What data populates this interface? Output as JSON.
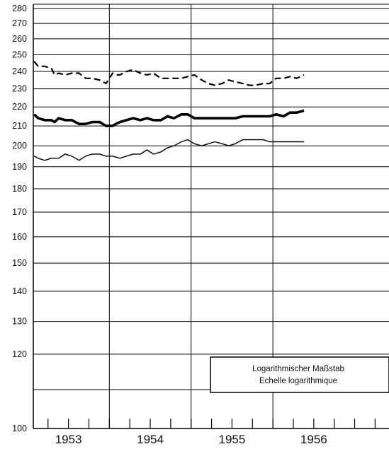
{
  "chart_data": {
    "type": "line",
    "title": "",
    "xlabel": "",
    "ylabel": "",
    "y_scale": "log",
    "ylim": [
      100,
      283
    ],
    "xlim": [
      1952.57,
      1956.92
    ],
    "y_ticks": [
      100,
      120,
      130,
      140,
      150,
      160,
      170,
      180,
      190,
      200,
      210,
      220,
      230,
      240,
      250,
      260,
      270,
      280
    ],
    "x_categories": [
      "1953",
      "1954",
      "1955",
      "1956"
    ],
    "grid": true,
    "annotation": [
      "Logarithmischer Maßstab",
      "Echelle logarithmique"
    ],
    "series": [
      {
        "style": "dashed",
        "x": [
          1952.58,
          1952.63,
          1952.71,
          1952.79,
          1952.83,
          1952.88,
          1952.96,
          1953.04,
          1953.13,
          1953.21,
          1953.29,
          1953.38,
          1953.46,
          1953.54,
          1953.58,
          1953.63,
          1953.71,
          1953.79,
          1953.88,
          1953.96,
          1954.04,
          1954.13,
          1954.21,
          1954.29,
          1954.38,
          1954.46,
          1954.54,
          1954.63,
          1954.71,
          1954.79,
          1954.88,
          1954.96,
          1955.04,
          1955.13,
          1955.21,
          1955.29,
          1955.38,
          1955.46,
          1955.54,
          1955.63,
          1955.71,
          1955.79,
          1955.88
        ],
        "values": [
          246,
          243,
          243,
          242,
          238,
          239,
          238,
          239,
          239,
          236,
          236,
          235,
          233,
          239,
          238,
          238,
          240,
          241,
          239,
          238,
          239,
          236,
          236,
          236,
          236,
          237,
          238,
          235,
          233,
          232,
          233,
          235,
          234,
          233,
          232,
          232,
          233,
          233,
          236,
          236,
          237,
          236,
          238
        ]
      },
      {
        "style": "bold",
        "x": [
          1952.58,
          1952.63,
          1952.71,
          1952.79,
          1952.83,
          1952.88,
          1952.96,
          1953.04,
          1953.13,
          1953.21,
          1953.29,
          1953.38,
          1953.46,
          1953.54,
          1953.58,
          1953.63,
          1953.71,
          1953.79,
          1953.88,
          1953.96,
          1954.04,
          1954.13,
          1954.21,
          1954.29,
          1954.38,
          1954.46,
          1954.54,
          1954.63,
          1954.71,
          1954.79,
          1954.88,
          1954.96,
          1955.04,
          1955.13,
          1955.21,
          1955.29,
          1955.38,
          1955.46,
          1955.54,
          1955.63,
          1955.71,
          1955.79,
          1955.88
        ],
        "values": [
          216,
          214,
          213,
          213,
          212,
          214,
          213,
          213,
          211,
          211,
          212,
          212,
          210,
          210,
          211,
          212,
          213,
          214,
          213,
          214,
          213,
          213,
          215,
          214,
          216,
          216,
          214,
          214,
          214,
          214,
          214,
          214,
          214,
          215,
          215,
          215,
          215,
          215,
          216,
          215,
          217,
          217,
          218
        ]
      },
      {
        "style": "thin",
        "x": [
          1952.58,
          1952.63,
          1952.71,
          1952.79,
          1952.88,
          1952.96,
          1953.04,
          1953.13,
          1953.21,
          1953.29,
          1953.38,
          1953.46,
          1953.54,
          1953.63,
          1953.71,
          1953.79,
          1953.88,
          1953.96,
          1954.04,
          1954.13,
          1954.21,
          1954.29,
          1954.38,
          1954.46,
          1954.54,
          1954.63,
          1954.71,
          1954.79,
          1954.88,
          1954.96,
          1955.04,
          1955.13,
          1955.21,
          1955.29,
          1955.38,
          1955.46,
          1955.54,
          1955.63,
          1955.71,
          1955.79,
          1955.88
        ],
        "values": [
          195,
          194,
          193,
          194,
          194,
          196,
          195,
          193,
          195,
          196,
          196,
          195,
          195,
          194,
          195,
          196,
          196,
          198,
          196,
          197,
          199,
          200,
          202,
          203,
          201,
          200,
          201,
          202,
          201,
          200,
          201,
          203,
          203,
          203,
          203,
          202,
          202,
          202,
          202,
          202,
          202
        ]
      }
    ]
  }
}
